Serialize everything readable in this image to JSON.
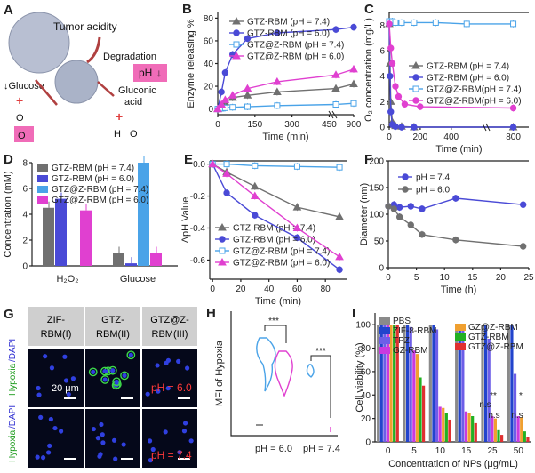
{
  "panels": {
    "A": {
      "letter": "A",
      "texts": [
        "Tumor acidity",
        "Degradation",
        "pH",
        "↓Glucose",
        "O",
        "O",
        "Gluconic",
        "acid",
        "H",
        "O"
      ]
    },
    "G": {
      "letter": "G",
      "cols": [
        "ZIF-",
        "RBM(I)",
        "GTZ-",
        "RBM(II)",
        "GTZ@Z-",
        "RBM(III)"
      ],
      "row_label_a": "Hypoxia",
      "row_label_b": "/DAPI",
      "scale": "20 μm",
      "ph_top": "pH = 6.0",
      "ph_bot": "pH = 7.4"
    }
  },
  "colors": {
    "grey": "#707070",
    "blue": "#4a4ad6",
    "lightblue": "#4aa3e8",
    "magenta": "#e040d0",
    "red": "#e03030"
  },
  "chart_data": [
    {
      "panel": "B",
      "type": "line",
      "ylabel": "Enzyme releasing %",
      "xlabel": "Time (min)",
      "xticks": [
        "0",
        "150",
        "300",
        "450",
        "900"
      ],
      "yticks": [
        "0",
        "20",
        "40",
        "60",
        "80"
      ],
      "series": [
        {
          "name": "GTZ-RBM (pH = 7.4)",
          "x": [
            0,
            15,
            30,
            60,
            120,
            240,
            480,
            900
          ],
          "y": [
            0,
            3,
            6,
            10,
            12,
            15,
            18,
            22
          ]
        },
        {
          "name": "GTZ-RBM (pH = 6.0)",
          "x": [
            0,
            15,
            30,
            60,
            120,
            240,
            480,
            900
          ],
          "y": [
            0,
            15,
            32,
            48,
            62,
            67,
            70,
            72
          ]
        },
        {
          "name": "GTZ@Z-RBM (pH = 7.4)",
          "x": [
            0,
            15,
            30,
            60,
            120,
            240,
            480,
            900
          ],
          "y": [
            0,
            0.5,
            1,
            1.5,
            2,
            3,
            4,
            5
          ]
        },
        {
          "name": "GTZ@Z-RBM (pH = 6.0)",
          "x": [
            0,
            15,
            30,
            60,
            120,
            240,
            480,
            900
          ],
          "y": [
            0,
            4,
            8,
            12,
            18,
            24,
            30,
            35
          ]
        }
      ]
    },
    {
      "panel": "C",
      "type": "line",
      "ylabel": "O₂ concentration (mg/L)",
      "xlabel": "Time (min)",
      "xticks": [
        "0",
        "200",
        "400",
        "800"
      ],
      "yticks": [
        "0",
        "2",
        "4",
        "6",
        "8"
      ],
      "series": [
        {
          "name": "GTZ-RBM (pH = 7.4)",
          "x": [
            0,
            5,
            10,
            20,
            40,
            80,
            160,
            800
          ],
          "y": [
            8.1,
            5,
            2,
            0.4,
            0.1,
            0.05,
            0,
            0
          ]
        },
        {
          "name": "GTZ-RBM (pH = 6.0)",
          "x": [
            0,
            5,
            10,
            20,
            40,
            80,
            160,
            800
          ],
          "y": [
            8.1,
            4,
            1.2,
            0.2,
            0.05,
            0,
            0,
            0
          ]
        },
        {
          "name": "GTZ@Z-RBM(pH = 7.4)",
          "x": [
            0,
            20,
            40,
            80,
            160,
            300,
            500,
            800
          ],
          "y": [
            8.3,
            8.3,
            8.2,
            8.2,
            8.2,
            8.2,
            8.1,
            8.1
          ]
        },
        {
          "name": "GTZ@Z-RBM(pH = 6.0)",
          "x": [
            0,
            10,
            20,
            40,
            60,
            100,
            200,
            800
          ],
          "y": [
            8.1,
            6.2,
            5,
            3.2,
            2.4,
            1.8,
            1.6,
            1.5
          ]
        }
      ]
    },
    {
      "panel": "D",
      "type": "bar",
      "ylabel": "Concentration (mM)",
      "ylim": [
        0,
        8
      ],
      "categories": [
        "H₂O₂",
        "Glucose"
      ],
      "yticks": [
        "0",
        "2",
        "4",
        "6",
        "8"
      ],
      "series": [
        {
          "name": "GTZ-RBM (pH = 7.4)",
          "values": [
            4.5,
            1.0
          ]
        },
        {
          "name": "GTZ-RBM (pH = 6.0)",
          "values": [
            5.2,
            0.2
          ]
        },
        {
          "name": "GTZ@Z-RBM (pH = 7.4)",
          "values": [
            0,
            8
          ]
        },
        {
          "name": "GTZ@Z-RBM (pH = 6.0)",
          "values": [
            4.3,
            1.0
          ]
        }
      ]
    },
    {
      "panel": "E",
      "type": "line",
      "ylabel": "ΔpH Value",
      "xlabel": "Time (min)",
      "xticks": [
        "0",
        "20",
        "40",
        "60",
        "80"
      ],
      "yticks": [
        "0.0",
        "-0.2",
        "-0.4",
        "-0.6"
      ],
      "series": [
        {
          "name": "GTZ-RBM (pH = 7.4)",
          "x": [
            0,
            10,
            30,
            60,
            90
          ],
          "y": [
            0,
            -0.05,
            -0.14,
            -0.27,
            -0.33
          ]
        },
        {
          "name": "GTZ-RBM (pH = 6.0)",
          "x": [
            0,
            10,
            30,
            60,
            90
          ],
          "y": [
            0,
            -0.18,
            -0.32,
            -0.46,
            -0.66
          ]
        },
        {
          "name": "GTZ@Z-RBM (pH = 7.4)",
          "x": [
            0,
            10,
            30,
            60,
            90
          ],
          "y": [
            0,
            0,
            -0.01,
            -0.015,
            -0.02
          ]
        },
        {
          "name": "GTZ@Z-RBM (pH = 6.0)",
          "x": [
            0,
            10,
            30,
            60,
            90
          ],
          "y": [
            0,
            -0.06,
            -0.2,
            -0.4,
            -0.58
          ]
        }
      ]
    },
    {
      "panel": "F",
      "type": "line",
      "ylabel": "Diameter (nm)",
      "xlabel": "Time (h)",
      "xticks": [
        "0",
        "5",
        "10",
        "15",
        "20",
        "25"
      ],
      "yticks": [
        "0",
        "50",
        "100",
        "150",
        "200"
      ],
      "series": [
        {
          "name": "pH = 7.4",
          "x": [
            0,
            1,
            2,
            4,
            6,
            12,
            24
          ],
          "y": [
            115,
            118,
            113,
            115,
            110,
            130,
            118
          ]
        },
        {
          "name": "pH = 6.0",
          "x": [
            0,
            1,
            2,
            4,
            6,
            12,
            24
          ],
          "y": [
            115,
            110,
            95,
            80,
            62,
            52,
            40
          ]
        }
      ]
    },
    {
      "panel": "H",
      "type": "violin",
      "ylabel": "MFI of Hypoxia",
      "groups": [
        "pH = 6.0",
        "pH = 7.4"
      ],
      "sig": [
        "***",
        "***"
      ]
    },
    {
      "panel": "I",
      "type": "bar",
      "ylabel": "Cell viability (%)",
      "xlabel": "Concentration of NPs (μg/mL)",
      "categories": [
        "0",
        "5",
        "10",
        "15",
        "25",
        "50"
      ],
      "yticks": [
        "0",
        "20",
        "40",
        "60",
        "80",
        "100"
      ],
      "ylim": [
        0,
        110
      ],
      "annotations": [
        "**",
        "n.s",
        "n.s",
        "*",
        "n.s"
      ],
      "series": [
        {
          "name": "PBS",
          "values": [
            100,
            100,
            100,
            100,
            100,
            100
          ]
        },
        {
          "name": "ZIF-8-RBM",
          "values": [
            100,
            100,
            100,
            100,
            100,
            100
          ]
        },
        {
          "name": "TPZ",
          "values": [
            100,
            98,
            96,
            95,
            88,
            58
          ]
        },
        {
          "name": "GZ-RBM",
          "values": [
            100,
            78,
            30,
            26,
            22,
            22
          ]
        },
        {
          "name": "GZ@Z-RBM",
          "values": [
            100,
            75,
            29,
            25,
            20,
            21
          ]
        },
        {
          "name": "GTZ-RBM",
          "values": [
            100,
            55,
            25,
            22,
            10,
            9
          ]
        },
        {
          "name": "GTZ@Z-RBM",
          "values": [
            100,
            48,
            19,
            16,
            6,
            4
          ]
        }
      ]
    }
  ]
}
